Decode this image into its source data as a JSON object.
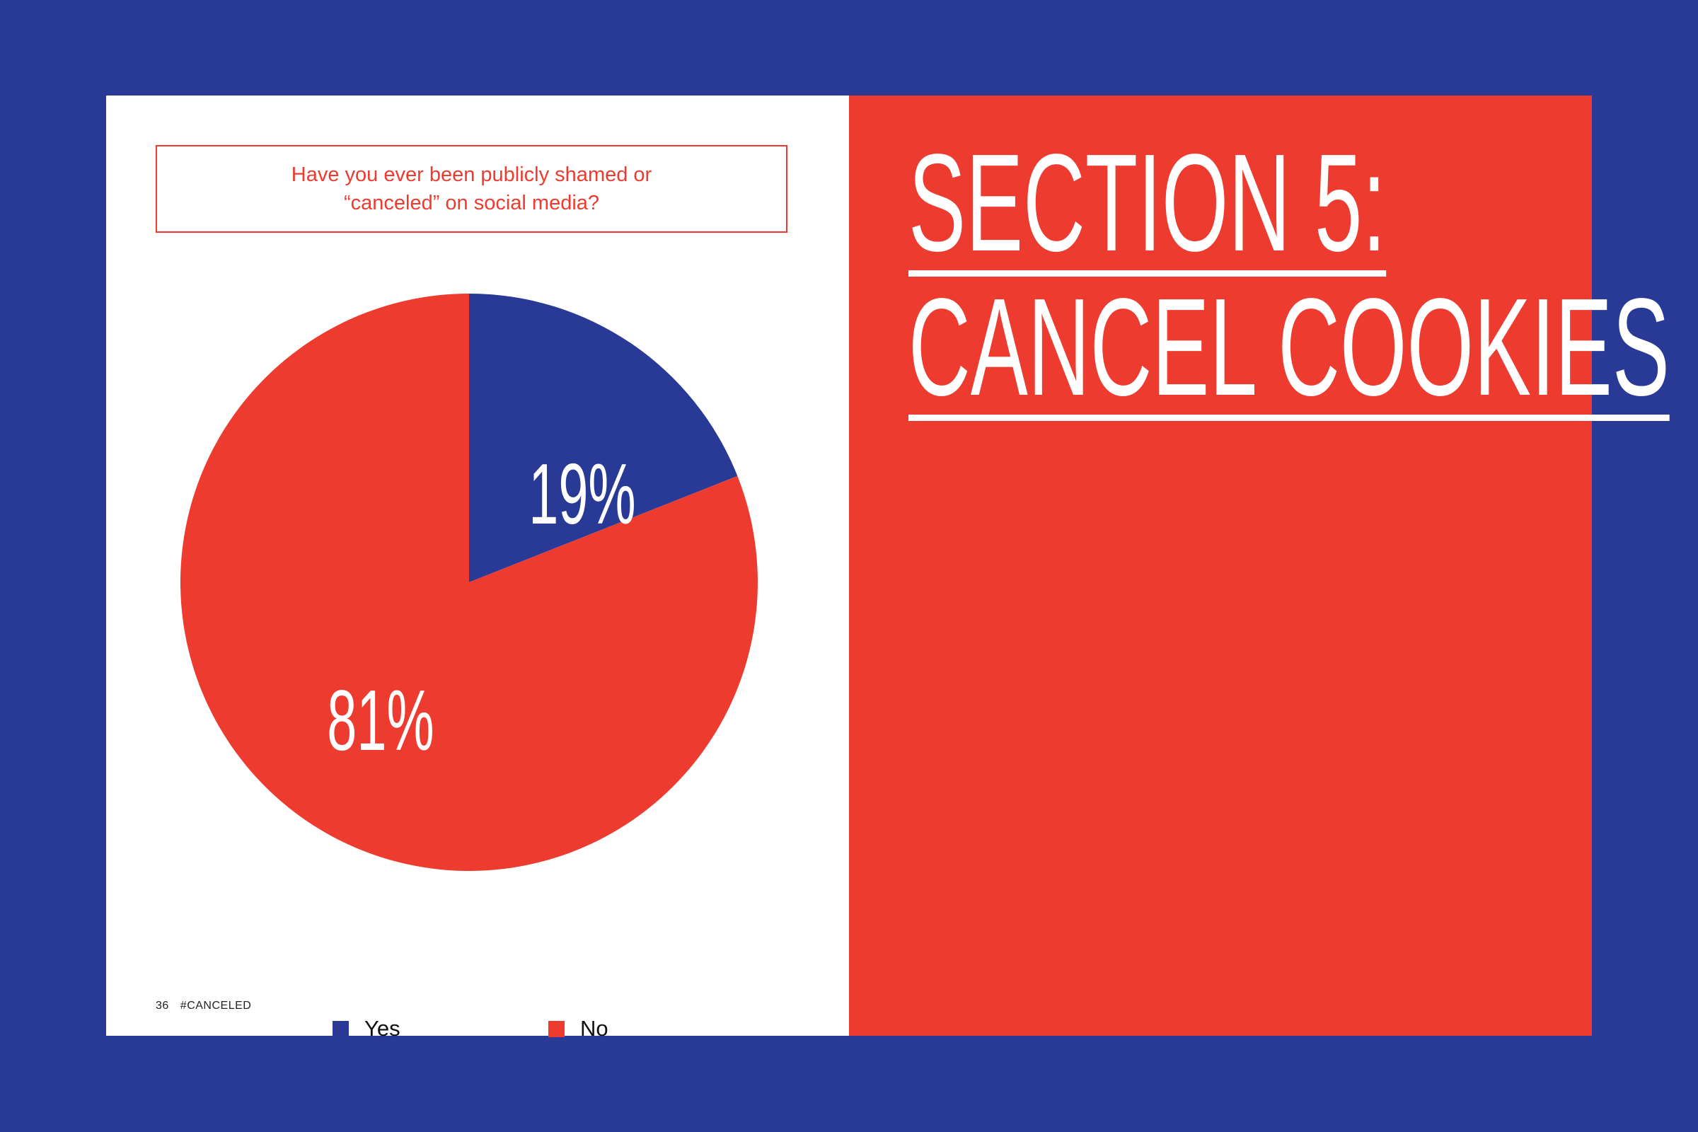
{
  "colors": {
    "background": "#283a96",
    "accent_red": "#ee3b30",
    "accent_blue": "#283a96",
    "page": "#ffffff"
  },
  "chart_data": {
    "type": "pie",
    "title_lines": [
      "Have you ever been publicly shamed or",
      "“canceled” on social media?"
    ],
    "categories": [
      "Yes",
      "No"
    ],
    "values": [
      19,
      81
    ],
    "data_labels": [
      "19%",
      "81%"
    ],
    "colors": [
      "#283a96",
      "#ee3b30"
    ],
    "legend_position": "bottom"
  },
  "footer": {
    "page_number": "36",
    "book_title": "#CANCELED"
  },
  "section": {
    "line1": "SECTION 5:",
    "line2": "CANCEL COOKIES"
  }
}
